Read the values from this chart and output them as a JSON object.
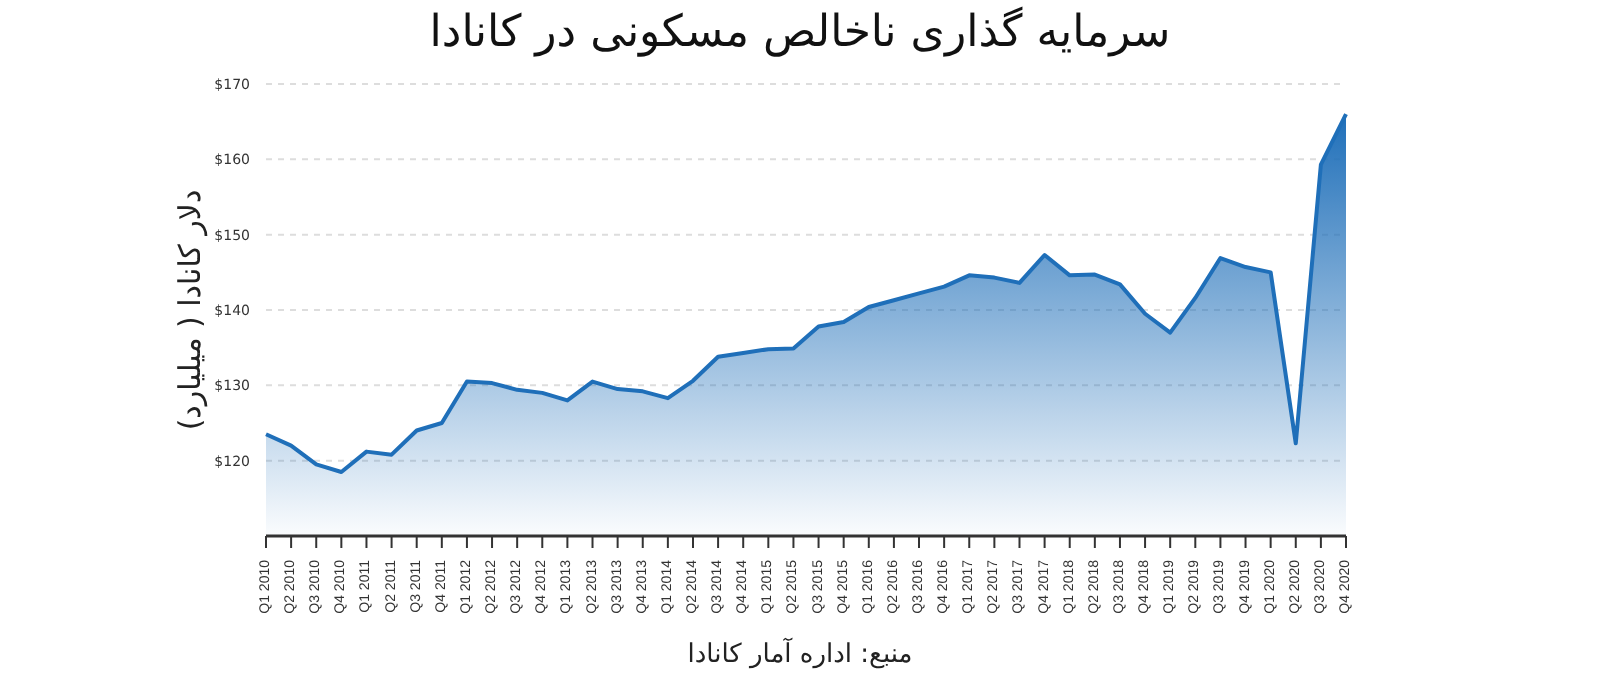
{
  "chart_data": {
    "type": "area",
    "title": "سرمایه گذاری ناخالص مسکونی در کانادا",
    "ylabel": "دلار کانادا ( میلیارد)",
    "annotations": [
      "منبع: اداره آمار کانادا"
    ],
    "categories": [
      "Q1 2010",
      "Q2 2010",
      "Q3 2010",
      "Q4 2010",
      "Q1 2011",
      "Q2 2011",
      "Q3 2011",
      "Q4 2011",
      "Q1 2012",
      "Q2 2012",
      "Q3 2012",
      "Q4 2012",
      "Q1 2013",
      "Q2 2013",
      "Q3 2013",
      "Q4 2013",
      "Q1 2014",
      "Q2 2014",
      "Q3 2014",
      "Q4 2014",
      "Q1 2015",
      "Q2 2015",
      "Q3 2015",
      "Q4 2015",
      "Q1 2016",
      "Q2 2016",
      "Q3 2016",
      "Q4 2016",
      "Q1 2017",
      "Q2 2017",
      "Q3 2017",
      "Q4 2017",
      "Q1 2018",
      "Q2 2018",
      "Q3 2018",
      "Q4 2018",
      "Q1 2019",
      "Q2 2019",
      "Q3 2019",
      "Q4 2019",
      "Q1 2020",
      "Q2 2020",
      "Q3 2020",
      "Q4 2020"
    ],
    "series": [
      {
        "color": "#1f6fb9",
        "values": [
          123.5,
          122,
          119.5,
          118.5,
          121.2,
          120.8,
          124,
          125,
          130.5,
          130.3,
          129.4,
          129,
          128,
          130.5,
          129.5,
          129.2,
          128.3,
          130.6,
          133.8,
          134.3,
          134.8,
          134.9,
          137.8,
          138.4,
          140.4,
          141.3,
          142.2,
          143.1,
          144.6,
          144.3,
          143.6,
          147.3,
          144.6,
          144.7,
          143.4,
          139.5,
          137,
          141.6,
          146.9,
          145.7,
          145,
          122.3,
          159.3,
          166
        ]
      }
    ],
    "ylim": [
      110,
      170
    ],
    "yticks": [
      {
        "value": 120,
        "label": "$120"
      },
      {
        "value": 130,
        "label": "$130"
      },
      {
        "value": 140,
        "label": "$140"
      },
      {
        "value": 150,
        "label": "$150"
      },
      {
        "value": 160,
        "label": "$160"
      },
      {
        "value": 170,
        "label": "$170"
      }
    ],
    "grid": "y",
    "legend": false
  }
}
